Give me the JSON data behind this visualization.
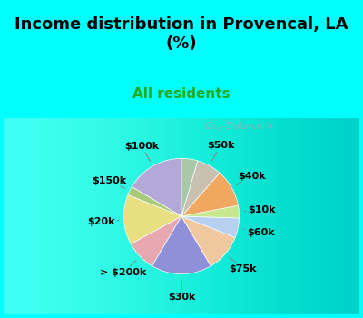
{
  "title": "Income distribution in Provencal, LA\n(%)",
  "subtitle": "All residents",
  "background_color": "#00FFFF",
  "slices": [
    {
      "label": "$100k",
      "value": 16.5,
      "color": "#b3a8d8"
    },
    {
      "label": "$150k",
      "value": 2.5,
      "color": "#a8c87a"
    },
    {
      "label": "$20k",
      "value": 14.0,
      "color": "#e8e080"
    },
    {
      "label": "> $200k",
      "value": 8.5,
      "color": "#e8a8b0"
    },
    {
      "label": "$30k",
      "value": 17.0,
      "color": "#9090d8"
    },
    {
      "label": "$75k",
      "value": 10.5,
      "color": "#f0c8a0"
    },
    {
      "label": "$60k",
      "value": 5.5,
      "color": "#b8d0f0"
    },
    {
      "label": "$10k",
      "value": 3.5,
      "color": "#c8e890"
    },
    {
      "label": "$40k",
      "value": 10.5,
      "color": "#f0a860"
    },
    {
      "label": "$50k",
      "value": 7.0,
      "color": "#c8c0b0"
    },
    {
      "label": "",
      "value": 4.5,
      "color": "#a8c8a8"
    }
  ],
  "watermark": "  City-Data.com",
  "label_fontsize": 8,
  "title_fontsize": 13,
  "subtitle_fontsize": 11,
  "subtitle_color": "#22aa22"
}
